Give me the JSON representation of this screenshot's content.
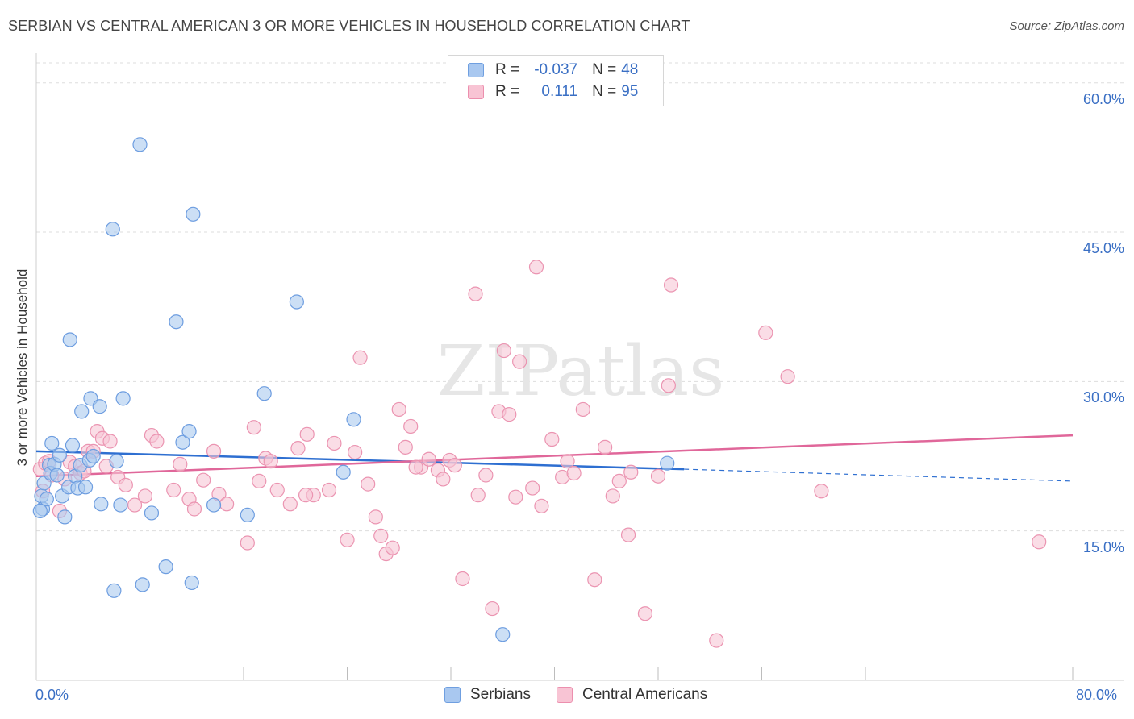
{
  "title": "SERBIAN VS CENTRAL AMERICAN 3 OR MORE VEHICLES IN HOUSEHOLD CORRELATION CHART",
  "source": "Source: ZipAtlas.com",
  "watermark": "ZIPatlas",
  "legend": {
    "rows": [
      {
        "r_label": "R =",
        "r_value": "-0.037",
        "n_label": "N =",
        "n_value": "48",
        "color": "#a9c8f0",
        "border": "#6f9fe0"
      },
      {
        "r_label": "R =",
        "r_value": "0.111",
        "n_label": "N =",
        "n_value": "95",
        "color": "#f8c4d4",
        "border": "#ec8fae"
      }
    ]
  },
  "bottom_legend": [
    "Serbians",
    "Central Americans"
  ],
  "colors": {
    "serbian_fill": "#aac9ef",
    "serbian_stroke": "#6d9de0",
    "serbian_line": "#2e6fd1",
    "central_fill": "#f7c6d5",
    "central_stroke": "#eb94b1",
    "central_line": "#e0679a",
    "axis_label": "#3a6fc4",
    "grid": "#dddddd"
  },
  "chart_data": {
    "type": "scatter",
    "title": "SERBIAN VS CENTRAL AMERICAN 3 OR MORE VEHICLES IN HOUSEHOLD CORRELATION CHART",
    "xlabel": "",
    "ylabel": "3 or more Vehicles in Household",
    "xlim": [
      0,
      80
    ],
    "ylim": [
      0,
      62
    ],
    "x_tick_labels": [
      "0.0%",
      "80.0%"
    ],
    "y_ticks": [
      15,
      30,
      45,
      60
    ],
    "y_tick_labels": [
      "15.0%",
      "30.0%",
      "45.0%",
      "60.0%"
    ],
    "grid": true,
    "series": [
      {
        "name": "Serbians",
        "trend": {
          "x0": 0,
          "y0": 23.0,
          "x1": 50,
          "y1": 21.2,
          "dash_to_x": 80,
          "dash_to_y": 20.0
        },
        "points": [
          [
            0.4,
            18.5
          ],
          [
            0.5,
            17.2
          ],
          [
            0.6,
            19.8
          ],
          [
            0.8,
            18.2
          ],
          [
            1.0,
            21.6
          ],
          [
            1.1,
            20.8
          ],
          [
            1.2,
            23.8
          ],
          [
            1.4,
            21.7
          ],
          [
            1.6,
            20.6
          ],
          [
            1.8,
            22.6
          ],
          [
            2.0,
            18.5
          ],
          [
            2.2,
            16.4
          ],
          [
            2.5,
            19.4
          ],
          [
            2.6,
            34.2
          ],
          [
            2.8,
            23.6
          ],
          [
            3.0,
            20.5
          ],
          [
            3.2,
            19.3
          ],
          [
            3.4,
            21.6
          ],
          [
            3.5,
            27.0
          ],
          [
            3.8,
            19.4
          ],
          [
            4.1,
            22.1
          ],
          [
            4.2,
            28.3
          ],
          [
            4.4,
            22.5
          ],
          [
            4.9,
            27.5
          ],
          [
            5.0,
            17.7
          ],
          [
            5.9,
            45.3
          ],
          [
            6.0,
            9.0
          ],
          [
            6.2,
            22.0
          ],
          [
            6.5,
            17.6
          ],
          [
            6.7,
            28.3
          ],
          [
            8.0,
            53.8
          ],
          [
            8.2,
            9.6
          ],
          [
            8.9,
            16.8
          ],
          [
            10.0,
            11.4
          ],
          [
            10.8,
            36.0
          ],
          [
            11.3,
            23.9
          ],
          [
            11.8,
            25.0
          ],
          [
            12.0,
            9.8
          ],
          [
            12.1,
            46.8
          ],
          [
            13.7,
            17.6
          ],
          [
            16.3,
            16.6
          ],
          [
            17.6,
            28.8
          ],
          [
            20.1,
            38.0
          ],
          [
            23.7,
            20.9
          ],
          [
            24.5,
            26.2
          ],
          [
            36.0,
            4.6
          ],
          [
            48.7,
            21.8
          ],
          [
            0.3,
            17.0
          ]
        ]
      },
      {
        "name": "Central Americans",
        "trend": {
          "x0": 0,
          "y0": 20.5,
          "x1": 80,
          "y1": 24.6
        },
        "points": [
          [
            0.3,
            21.2
          ],
          [
            0.5,
            19.0
          ],
          [
            0.7,
            21.8
          ],
          [
            1.0,
            22.0
          ],
          [
            1.2,
            20.6
          ],
          [
            1.8,
            17.0
          ],
          [
            2.2,
            20.2
          ],
          [
            2.6,
            21.9
          ],
          [
            3.0,
            21.5
          ],
          [
            3.4,
            20.8
          ],
          [
            3.7,
            21.0
          ],
          [
            4.0,
            23.0
          ],
          [
            4.4,
            23.0
          ],
          [
            4.7,
            25.0
          ],
          [
            5.1,
            24.3
          ],
          [
            5.4,
            21.5
          ],
          [
            5.7,
            24.0
          ],
          [
            6.3,
            20.4
          ],
          [
            6.9,
            19.6
          ],
          [
            7.6,
            17.6
          ],
          [
            8.4,
            18.5
          ],
          [
            8.9,
            24.6
          ],
          [
            9.3,
            24.0
          ],
          [
            10.6,
            19.1
          ],
          [
            11.1,
            21.7
          ],
          [
            11.8,
            18.2
          ],
          [
            12.2,
            17.2
          ],
          [
            12.9,
            20.1
          ],
          [
            13.7,
            23.0
          ],
          [
            14.1,
            18.7
          ],
          [
            14.7,
            17.7
          ],
          [
            16.3,
            13.8
          ],
          [
            16.8,
            25.4
          ],
          [
            17.2,
            20.0
          ],
          [
            17.7,
            22.3
          ],
          [
            18.1,
            22.0
          ],
          [
            18.6,
            19.1
          ],
          [
            19.6,
            17.7
          ],
          [
            20.2,
            23.3
          ],
          [
            20.9,
            24.7
          ],
          [
            21.4,
            18.6
          ],
          [
            22.6,
            19.1
          ],
          [
            23.0,
            23.8
          ],
          [
            24.0,
            14.1
          ],
          [
            24.6,
            22.9
          ],
          [
            25.0,
            32.4
          ],
          [
            25.6,
            19.7
          ],
          [
            26.2,
            16.4
          ],
          [
            26.6,
            14.5
          ],
          [
            27.0,
            12.7
          ],
          [
            27.5,
            13.3
          ],
          [
            28.0,
            27.2
          ],
          [
            28.5,
            23.4
          ],
          [
            28.9,
            25.5
          ],
          [
            29.7,
            21.4
          ],
          [
            30.3,
            22.2
          ],
          [
            31.0,
            21.1
          ],
          [
            31.4,
            20.2
          ],
          [
            31.9,
            22.1
          ],
          [
            32.3,
            21.6
          ],
          [
            32.9,
            10.2
          ],
          [
            33.9,
            38.8
          ],
          [
            34.1,
            18.6
          ],
          [
            34.7,
            20.6
          ],
          [
            35.2,
            7.2
          ],
          [
            35.7,
            27.0
          ],
          [
            36.1,
            33.1
          ],
          [
            36.5,
            26.7
          ],
          [
            37.0,
            18.4
          ],
          [
            37.3,
            32.0
          ],
          [
            38.3,
            19.3
          ],
          [
            38.6,
            41.5
          ],
          [
            39.0,
            17.5
          ],
          [
            39.8,
            24.2
          ],
          [
            40.6,
            20.4
          ],
          [
            41.0,
            22.0
          ],
          [
            41.5,
            20.8
          ],
          [
            42.2,
            27.2
          ],
          [
            43.1,
            10.1
          ],
          [
            43.9,
            23.4
          ],
          [
            44.5,
            18.5
          ],
          [
            45.0,
            20.0
          ],
          [
            45.7,
            14.6
          ],
          [
            47.0,
            6.7
          ],
          [
            48.0,
            20.5
          ],
          [
            48.8,
            29.6
          ],
          [
            49.0,
            39.7
          ],
          [
            52.5,
            4.0
          ],
          [
            56.3,
            34.9
          ],
          [
            58.0,
            30.5
          ],
          [
            60.6,
            19.0
          ],
          [
            77.4,
            13.9
          ],
          [
            45.9,
            20.9
          ],
          [
            29.3,
            21.4
          ],
          [
            20.8,
            18.6
          ]
        ]
      }
    ]
  }
}
